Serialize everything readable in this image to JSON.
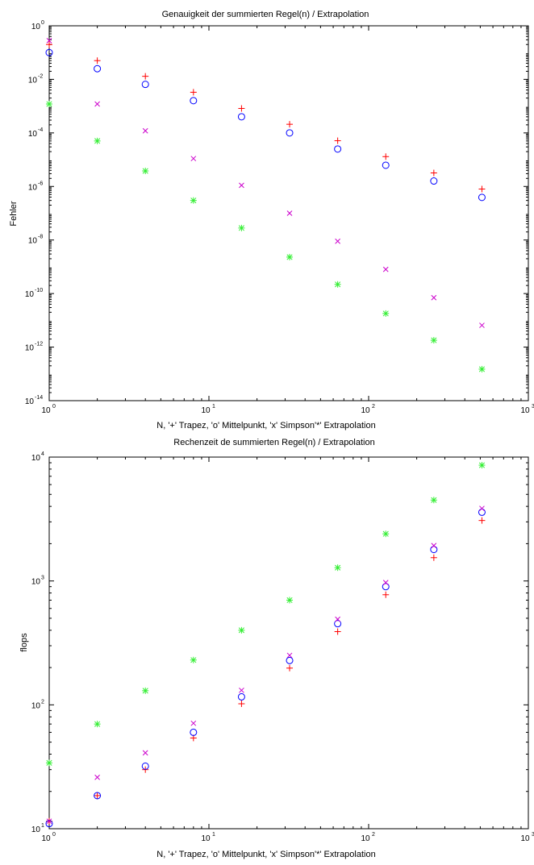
{
  "chart_data": [
    {
      "type": "scatter",
      "title": "Genauigkeit der summierten Regel(n) / Extrapolation",
      "xlabel": "N, '+' Trapez, 'o' Mittelpunkt, 'x' Simpson'*' Extrapolation",
      "ylabel": "Fehler",
      "xscale": "log",
      "yscale": "log",
      "xlim": [
        1,
        1000
      ],
      "ylim": [
        1e-14,
        1
      ],
      "xticks": [
        {
          "base": "10",
          "exp": "0",
          "value": 1
        },
        {
          "base": "10",
          "exp": "1",
          "value": 10
        },
        {
          "base": "10",
          "exp": "2",
          "value": 100
        },
        {
          "base": "10",
          "exp": "3",
          "value": 1000
        }
      ],
      "yticks": [
        {
          "base": "10",
          "exp": "0",
          "value": 1
        },
        {
          "base": "10",
          "exp": "-2",
          "value": 0.01
        },
        {
          "base": "10",
          "exp": "-4",
          "value": 0.0001
        },
        {
          "base": "10",
          "exp": "-6",
          "value": 1e-06
        },
        {
          "base": "10",
          "exp": "-8",
          "value": 1e-08
        },
        {
          "base": "10",
          "exp": "-10",
          "value": 1e-10
        },
        {
          "base": "10",
          "exp": "-12",
          "value": 1e-12
        },
        {
          "base": "10",
          "exp": "-14",
          "value": 1e-14
        }
      ],
      "x": [
        1,
        2,
        4,
        8,
        16,
        32,
        64,
        128,
        256,
        512
      ],
      "series": [
        {
          "marker": "+",
          "color": "#ff0000",
          "values": [
            0.2,
            0.05,
            0.013,
            0.0033,
            0.00082,
            0.00021,
            5.1e-05,
            1.3e-05,
            3.2e-06,
            8e-07
          ]
        },
        {
          "marker": "o",
          "color": "#0000ff",
          "values": [
            0.1,
            0.025,
            0.0065,
            0.0016,
            0.0004,
            0.0001,
            2.5e-05,
            6.2e-06,
            1.6e-06,
            3.9e-07
          ]
        },
        {
          "marker": "x",
          "color": "#cc00cc",
          "values": [
            0.28,
            0.0012,
            0.00012,
            1.1e-05,
            1.1e-06,
            1e-07,
            9e-09,
            8e-10,
            7e-11,
            6.5e-12
          ]
        },
        {
          "marker": "*",
          "color": "#33ee33",
          "values": [
            0.0012,
            5e-05,
            3.8e-06,
            3e-07,
            2.8e-08,
            2.3e-09,
            2.2e-10,
            1.8e-11,
            1.8e-12,
            1.5e-13
          ]
        }
      ]
    },
    {
      "type": "scatter",
      "title": "Rechenzeit de summierten Regel(n) / Extrapolation",
      "xlabel": "N, '+' Trapez, 'o' Mittelpunkt, 'x' Simpson'*' Extrapolation",
      "ylabel": "flops",
      "xscale": "log",
      "yscale": "log",
      "xlim": [
        1,
        1000
      ],
      "ylim": [
        10,
        10000
      ],
      "xticks": [
        {
          "base": "10",
          "exp": "0",
          "value": 1
        },
        {
          "base": "10",
          "exp": "1",
          "value": 10
        },
        {
          "base": "10",
          "exp": "2",
          "value": 100
        },
        {
          "base": "10",
          "exp": "3",
          "value": 1000
        }
      ],
      "yticks": [
        {
          "base": "10",
          "exp": "1",
          "value": 10
        },
        {
          "base": "10",
          "exp": "2",
          "value": 100
        },
        {
          "base": "10",
          "exp": "3",
          "value": 1000
        },
        {
          "base": "10",
          "exp": "4",
          "value": 10000
        }
      ],
      "x": [
        1,
        2,
        4,
        8,
        16,
        32,
        64,
        128,
        256,
        512
      ],
      "series": [
        {
          "marker": "+",
          "color": "#ff0000",
          "values": [
            11.5,
            18.5,
            30,
            54,
            102,
            198,
            390,
            774,
            1542,
            3078
          ]
        },
        {
          "marker": "o",
          "color": "#0000ff",
          "values": [
            11,
            18.5,
            32,
            60,
            116,
            228,
            452,
            900,
            1796,
            3588
          ]
        },
        {
          "marker": "x",
          "color": "#cc00cc",
          "values": [
            11.5,
            26,
            41,
            71,
            131,
            251,
            491,
            971,
            1931,
            3851
          ]
        },
        {
          "marker": "*",
          "color": "#33ee33",
          "values": [
            34,
            70,
            130,
            230,
            400,
            700,
            1280,
            2400,
            4500,
            8600
          ]
        }
      ]
    }
  ]
}
